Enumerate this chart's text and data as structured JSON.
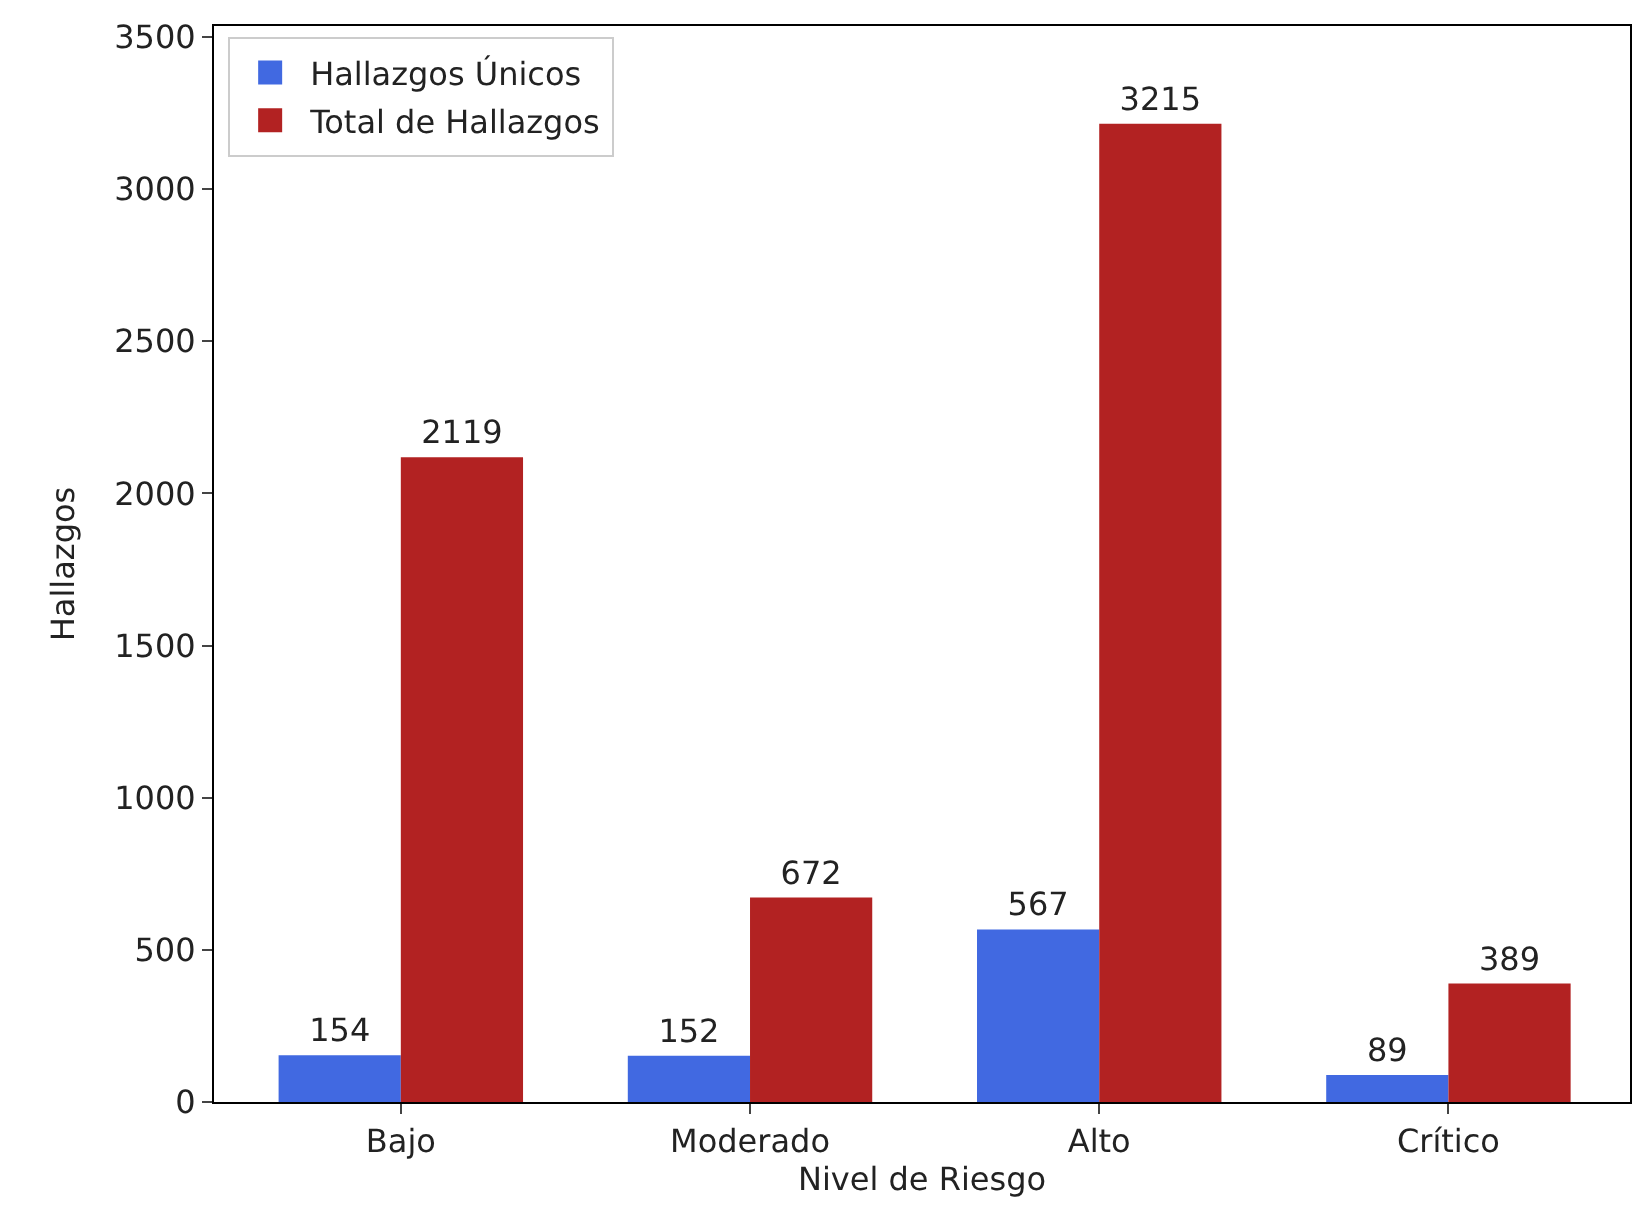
{
  "chart_data": {
    "type": "bar",
    "xlabel": "Nivel de Riesgo",
    "ylabel": "Hallazgos",
    "categories": [
      "Bajo",
      "Moderado",
      "Alto",
      "Crítico"
    ],
    "series": [
      {
        "name": "Hallazgos Únicos",
        "color": "#4169e1",
        "values": [
          154,
          152,
          567,
          89
        ]
      },
      {
        "name": "Total de Hallazgos",
        "color": "#b22222",
        "values": [
          2119,
          672,
          3215,
          389
        ]
      }
    ],
    "ylim": [
      0,
      3536
    ],
    "yticks": [
      0,
      500,
      1000,
      1500,
      2000,
      2500,
      3000,
      3500
    ],
    "data_labels": true,
    "legend": "top left"
  }
}
